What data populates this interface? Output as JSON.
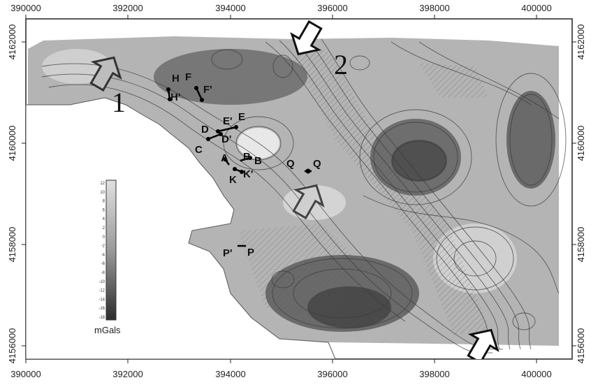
{
  "map": {
    "x_ticks": [
      "390000",
      "392000",
      "394000",
      "396000",
      "398000",
      "400000"
    ],
    "y_ticks": [
      "4162000",
      "4160000",
      "4158000",
      "4156000"
    ],
    "legend": {
      "unit": "mGals",
      "values": [
        "12",
        "10",
        "8",
        "6",
        "4",
        "2",
        "0",
        "-2",
        "-4",
        "-6",
        "-8",
        "-10",
        "-12",
        "-14",
        "-16",
        "-18"
      ]
    },
    "arrow_labels": [
      "1",
      "2"
    ],
    "markers": [
      "H",
      "F",
      "H'",
      "F'",
      "E'",
      "E",
      "D",
      "D'",
      "C",
      "A",
      "B",
      "B",
      "K",
      "K'",
      "Q",
      "Q",
      "P'",
      "P"
    ],
    "colors": {
      "land": "#ffffff",
      "grid_light": "#e6e6e6",
      "grid_dark": "#3c3c3c"
    }
  }
}
